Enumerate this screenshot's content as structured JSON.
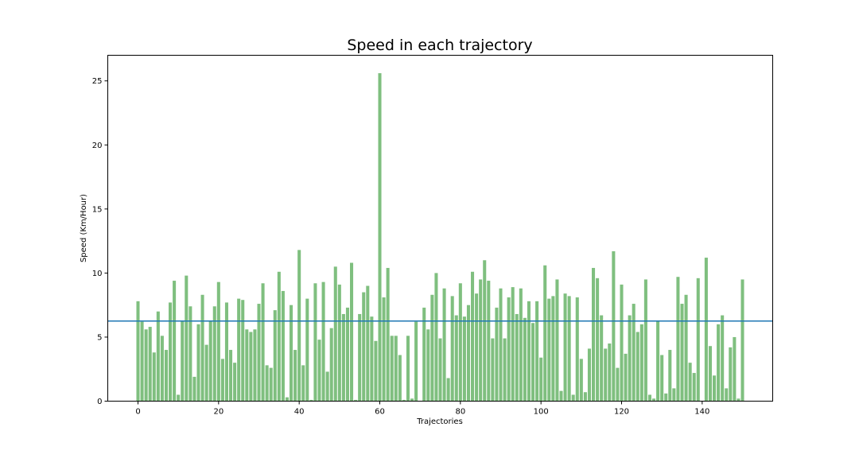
{
  "chart_data": {
    "type": "bar",
    "title": "Speed in each trajectory",
    "xlabel": "Trajectories",
    "ylabel": "Speed (Km/Hour)",
    "xlim": [
      -7.5,
      157.5
    ],
    "ylim": [
      0,
      27
    ],
    "xticks": [
      0,
      20,
      40,
      60,
      80,
      100,
      120,
      140
    ],
    "yticks": [
      0,
      5,
      10,
      15,
      20,
      25
    ],
    "grid": false,
    "legend": "none",
    "bar_color": "#7fbf7f",
    "mean_line": {
      "value": 6.25,
      "color": "#1f77b4"
    },
    "x": [
      0,
      1,
      2,
      3,
      4,
      5,
      6,
      7,
      8,
      9,
      10,
      11,
      12,
      13,
      14,
      15,
      16,
      17,
      18,
      19,
      20,
      21,
      22,
      23,
      24,
      25,
      26,
      27,
      28,
      29,
      30,
      31,
      32,
      33,
      34,
      35,
      36,
      37,
      38,
      39,
      40,
      41,
      42,
      43,
      44,
      45,
      46,
      47,
      48,
      49,
      50,
      51,
      52,
      53,
      54,
      55,
      56,
      57,
      58,
      59,
      60,
      61,
      62,
      63,
      64,
      65,
      66,
      67,
      68,
      69,
      70,
      71,
      72,
      73,
      74,
      75,
      76,
      77,
      78,
      79,
      80,
      81,
      82,
      83,
      84,
      85,
      86,
      87,
      88,
      89,
      90,
      91,
      92,
      93,
      94,
      95,
      96,
      97,
      98,
      99,
      100,
      101,
      102,
      103,
      104,
      105,
      106,
      107,
      108,
      109,
      110,
      111,
      112,
      113,
      114,
      115,
      116,
      117,
      118,
      119,
      120,
      121,
      122,
      123,
      124,
      125,
      126,
      127,
      128,
      129,
      130,
      131,
      132,
      133,
      134,
      135,
      136,
      137,
      138,
      139,
      140,
      141,
      142,
      143,
      144,
      145,
      146,
      147,
      148,
      149,
      150
    ],
    "values": [
      7.8,
      6.2,
      5.6,
      5.8,
      3.8,
      7.0,
      5.1,
      4.0,
      7.7,
      9.4,
      0.5,
      6.3,
      9.8,
      7.4,
      1.9,
      6.0,
      8.3,
      4.4,
      6.3,
      7.4,
      9.3,
      3.3,
      7.7,
      4.0,
      3.0,
      8.0,
      7.9,
      5.6,
      5.4,
      5.6,
      7.6,
      9.2,
      2.8,
      2.6,
      7.1,
      10.1,
      8.6,
      0.3,
      7.5,
      4.0,
      11.8,
      2.8,
      8.0,
      0.1,
      9.2,
      4.8,
      9.3,
      2.3,
      5.7,
      10.5,
      9.1,
      6.8,
      7.3,
      10.8,
      0.1,
      6.8,
      8.5,
      9.0,
      6.6,
      4.7,
      25.6,
      8.1,
      10.4,
      5.1,
      5.1,
      3.6,
      0.1,
      5.1,
      0.2,
      6.2,
      0.0,
      7.3,
      5.6,
      8.3,
      10.0,
      4.9,
      8.8,
      1.8,
      8.2,
      6.7,
      9.2,
      6.6,
      7.5,
      10.1,
      8.4,
      9.5,
      11.0,
      9.4,
      4.9,
      7.3,
      8.8,
      4.9,
      8.1,
      8.9,
      6.8,
      8.8,
      6.5,
      7.8,
      6.1,
      7.8,
      3.4,
      10.6,
      8.0,
      8.2,
      9.5,
      0.8,
      8.4,
      8.2,
      0.5,
      8.1,
      3.3,
      0.7,
      4.1,
      10.4,
      9.6,
      6.7,
      4.1,
      4.5,
      11.7,
      2.6,
      9.1,
      3.7,
      6.7,
      7.6,
      5.4,
      6.0,
      9.5,
      0.5,
      0.2,
      6.3,
      3.6,
      0.6,
      4.0,
      1.0,
      9.7,
      7.6,
      8.3,
      3.0,
      2.2,
      9.6,
      0.0,
      11.2,
      4.3,
      2.0,
      6.0,
      6.7,
      1.0,
      4.2,
      5.0,
      0.2,
      9.5
    ]
  }
}
